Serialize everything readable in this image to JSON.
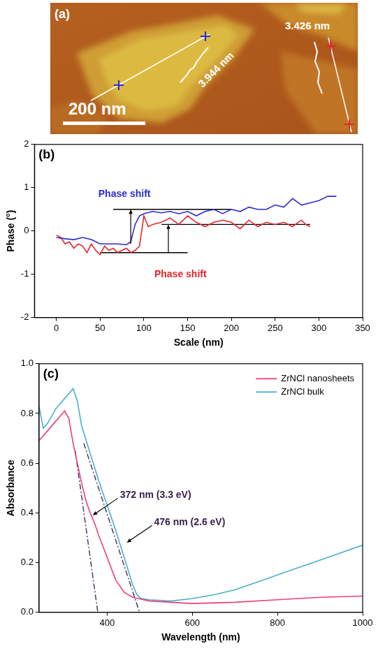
{
  "afm_image": {
    "label": "(a)",
    "scale_bar": "200 nm",
    "profiles": [
      {
        "height_label": "3.944 nm",
        "color": "#2b2bd6"
      },
      {
        "height_label": "3.426 nm",
        "color": "#e3262b"
      }
    ]
  },
  "chart_data": [
    {
      "type": "line",
      "title": "(b)",
      "x_label": "Scale (nm)",
      "y_label": "Phase (°)",
      "xlim": [
        -25,
        350
      ],
      "xticks": [
        0,
        50,
        100,
        150,
        200,
        250,
        300,
        350
      ],
      "ylim": [
        -2,
        2
      ],
      "yticks": [
        -2,
        -1,
        0,
        1,
        2
      ],
      "grid": false,
      "series": [
        {
          "color": "#2b2bd6",
          "x": [
            0,
            10,
            20,
            30,
            40,
            50,
            60,
            70,
            80,
            85,
            90,
            95,
            100,
            110,
            120,
            130,
            140,
            150,
            160,
            170,
            180,
            190,
            200,
            210,
            220,
            230,
            240,
            250,
            260,
            270,
            280,
            290,
            300,
            310,
            320
          ],
          "values": [
            -0.15,
            -0.18,
            -0.2,
            -0.15,
            -0.2,
            -0.3,
            -0.3,
            -0.3,
            -0.32,
            -0.25,
            0.15,
            0.35,
            0.4,
            0.45,
            0.42,
            0.45,
            0.4,
            0.45,
            0.35,
            0.45,
            0.5,
            0.4,
            0.5,
            0.45,
            0.55,
            0.5,
            0.5,
            0.6,
            0.55,
            0.75,
            0.6,
            0.65,
            0.7,
            0.8,
            0.8
          ]
        },
        {
          "color": "#e3262b",
          "x": [
            0,
            5,
            10,
            15,
            20,
            25,
            30,
            35,
            40,
            45,
            50,
            55,
            60,
            65,
            70,
            75,
            80,
            85,
            90,
            95,
            100,
            105,
            110,
            120,
            130,
            140,
            150,
            160,
            170,
            180,
            190,
            200,
            210,
            220,
            230,
            240,
            250,
            260,
            270,
            280,
            285,
            290
          ],
          "values": [
            -0.1,
            -0.15,
            -0.3,
            -0.25,
            -0.4,
            -0.3,
            -0.35,
            -0.5,
            -0.3,
            -0.45,
            -0.55,
            -0.35,
            -0.45,
            -0.4,
            -0.5,
            -0.45,
            -0.4,
            -0.5,
            -0.45,
            -0.35,
            0.35,
            0.1,
            0.15,
            0.2,
            0.3,
            0.15,
            0.35,
            0.2,
            0.1,
            0.2,
            0.25,
            0.2,
            0.05,
            0.25,
            0.1,
            0.2,
            0.15,
            0.2,
            0.1,
            0.25,
            0.15,
            0.1
          ]
        }
      ],
      "lines": [
        {
          "x": [
            65,
            200
          ],
          "y": [
            0.5,
            0.5
          ],
          "color": "#000000",
          "line_style": "solid"
        },
        {
          "x": [
            50,
            150
          ],
          "y": [
            -0.5,
            -0.5
          ],
          "color": "#000000",
          "line_style": "solid"
        },
        {
          "x": [
            120,
            290
          ],
          "y": [
            0.15,
            0.15
          ],
          "color": "#000000",
          "line_style": "solid"
        }
      ],
      "arrows": [
        {
          "x": [
            85,
            85
          ],
          "y": [
            -0.3,
            0.5
          ]
        },
        {
          "x": [
            128,
            128
          ],
          "y": [
            -0.5,
            0.15
          ]
        }
      ],
      "annotations": [
        {
          "text": "Phase shift",
          "color": "#2b2bd6",
          "x": 48,
          "y": 0.85
        },
        {
          "text": "Phase shift",
          "color": "#e3262b",
          "x": 112,
          "y": -1.0
        }
      ]
    },
    {
      "type": "line",
      "title": "(c)",
      "x_label": "Wavelength (nm)",
      "y_label": "Absorbance",
      "xlim": [
        240,
        1000
      ],
      "xticks": [
        400,
        600,
        800,
        1000
      ],
      "ylim": [
        0,
        1
      ],
      "yticks": [
        {
          "value": 0,
          "label": "0.0"
        },
        {
          "value": 0.2,
          "label": "0.2"
        },
        {
          "value": 0.4,
          "label": "0.4"
        },
        {
          "value": 0.6,
          "label": "0.6"
        },
        {
          "value": 0.8,
          "label": "0.8"
        },
        {
          "value": 1,
          "label": "1.0"
        }
      ],
      "grid": false,
      "legend": "upper right",
      "series": [
        {
          "name": "ZrNCl nanosheets",
          "color": "#ec3f7c",
          "x": [
            240,
            260,
            280,
            295,
            300,
            310,
            320,
            330,
            340,
            350,
            360,
            370,
            380,
            400,
            420,
            440,
            460,
            500,
            600,
            700,
            800,
            900,
            1000
          ],
          "values": [
            0.69,
            0.73,
            0.77,
            0.8,
            0.81,
            0.78,
            0.68,
            0.6,
            0.52,
            0.45,
            0.4,
            0.36,
            0.31,
            0.22,
            0.13,
            0.08,
            0.06,
            0.045,
            0.035,
            0.04,
            0.05,
            0.06,
            0.065
          ]
        },
        {
          "name": "ZrNCl bulk",
          "color": "#4bafc8",
          "x": [
            240,
            250,
            260,
            280,
            300,
            315,
            320,
            330,
            340,
            360,
            380,
            400,
            420,
            440,
            460,
            470,
            480,
            500,
            550,
            600,
            650,
            700,
            750,
            800,
            850,
            900,
            950,
            1000
          ],
          "values": [
            0.83,
            0.74,
            0.76,
            0.82,
            0.86,
            0.89,
            0.9,
            0.85,
            0.75,
            0.64,
            0.53,
            0.43,
            0.33,
            0.22,
            0.11,
            0.07,
            0.055,
            0.05,
            0.045,
            0.055,
            0.07,
            0.09,
            0.12,
            0.15,
            0.18,
            0.21,
            0.24,
            0.27
          ]
        }
      ],
      "lines": [
        {
          "x": [
            325,
            378
          ],
          "y": [
            0.65,
            0
          ],
          "color": "#4a2a5a",
          "line_style": "dashdot"
        },
        {
          "x": [
            345,
            476
          ],
          "y": [
            0.68,
            0
          ],
          "color": "#4a2a5a",
          "line_style": "dashdot"
        }
      ],
      "annotations": [
        {
          "text": "372 nm (3.3 eV)",
          "color": "#3a2050",
          "x": 430,
          "y": 0.47,
          "arrow_to": [
            366,
            0.39
          ]
        },
        {
          "text": "476 nm (2.6 eV)",
          "color": "#3a2050",
          "x": 510,
          "y": 0.36,
          "arrow_to": [
            446,
            0.28
          ]
        }
      ]
    }
  ]
}
